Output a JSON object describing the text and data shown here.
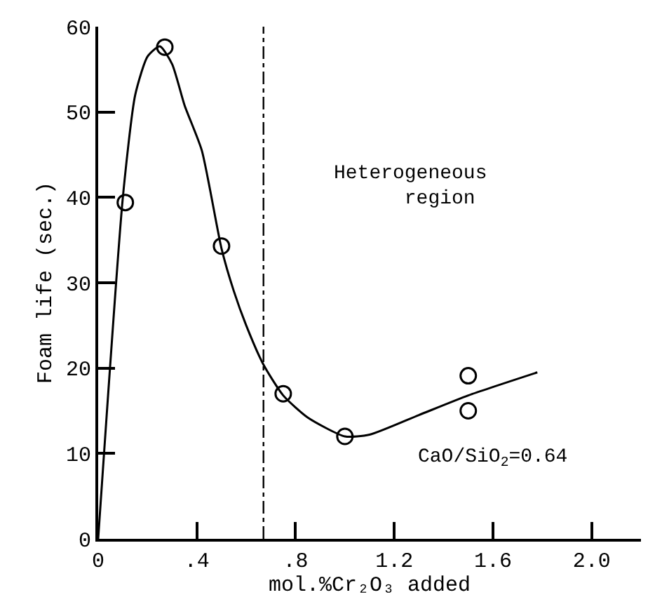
{
  "chart_data": {
    "type": "scatter",
    "xlabel": "mol.%Cr₂O₃ added",
    "ylabel": "Foam life (sec.)",
    "xlim": [
      0,
      2.2
    ],
    "ylim": [
      0,
      60
    ],
    "xticks": [
      0,
      {
        "value": 0.4,
        "label": ".4"
      },
      {
        "value": 0.8,
        "label": ".8"
      },
      1.2,
      1.6,
      {
        "value": 2.0,
        "label": "2.0"
      }
    ],
    "yticks": [
      0,
      10,
      20,
      30,
      40,
      50,
      60
    ],
    "series": [
      {
        "marker": "circle",
        "color": "#000000",
        "x": [
          0.11,
          0.27,
          0.5,
          0.75,
          1.0,
          1.5,
          1.5
        ],
        "values": [
          39.4,
          57.6,
          34.3,
          17.0,
          12.0,
          19.1,
          15.0
        ]
      },
      {
        "type": "line",
        "marker": "none",
        "line_style": "solid",
        "color": "#000000",
        "x": [
          0,
          0.1,
          0.15,
          0.2,
          0.25,
          0.3,
          0.35,
          0.42,
          0.5,
          0.55,
          0.6,
          0.67,
          0.75,
          0.85,
          1.0,
          1.1,
          1.3,
          1.5,
          1.78
        ],
        "values": [
          0,
          40,
          52,
          56.5,
          57.7,
          55.6,
          50.8,
          45.5,
          34,
          29,
          25,
          20.4,
          16.8,
          14.2,
          12.0,
          12.2,
          14.5,
          16.8,
          19.5
        ]
      }
    ],
    "ref_lines": [
      {
        "axis": "x",
        "value": 0.67,
        "label": null,
        "color": "#000000",
        "line_style": "dashdot"
      }
    ],
    "annotations": [
      "Heterogeneous\n      region",
      "CaO/SiO$_{2}$=0.64"
    ]
  }
}
